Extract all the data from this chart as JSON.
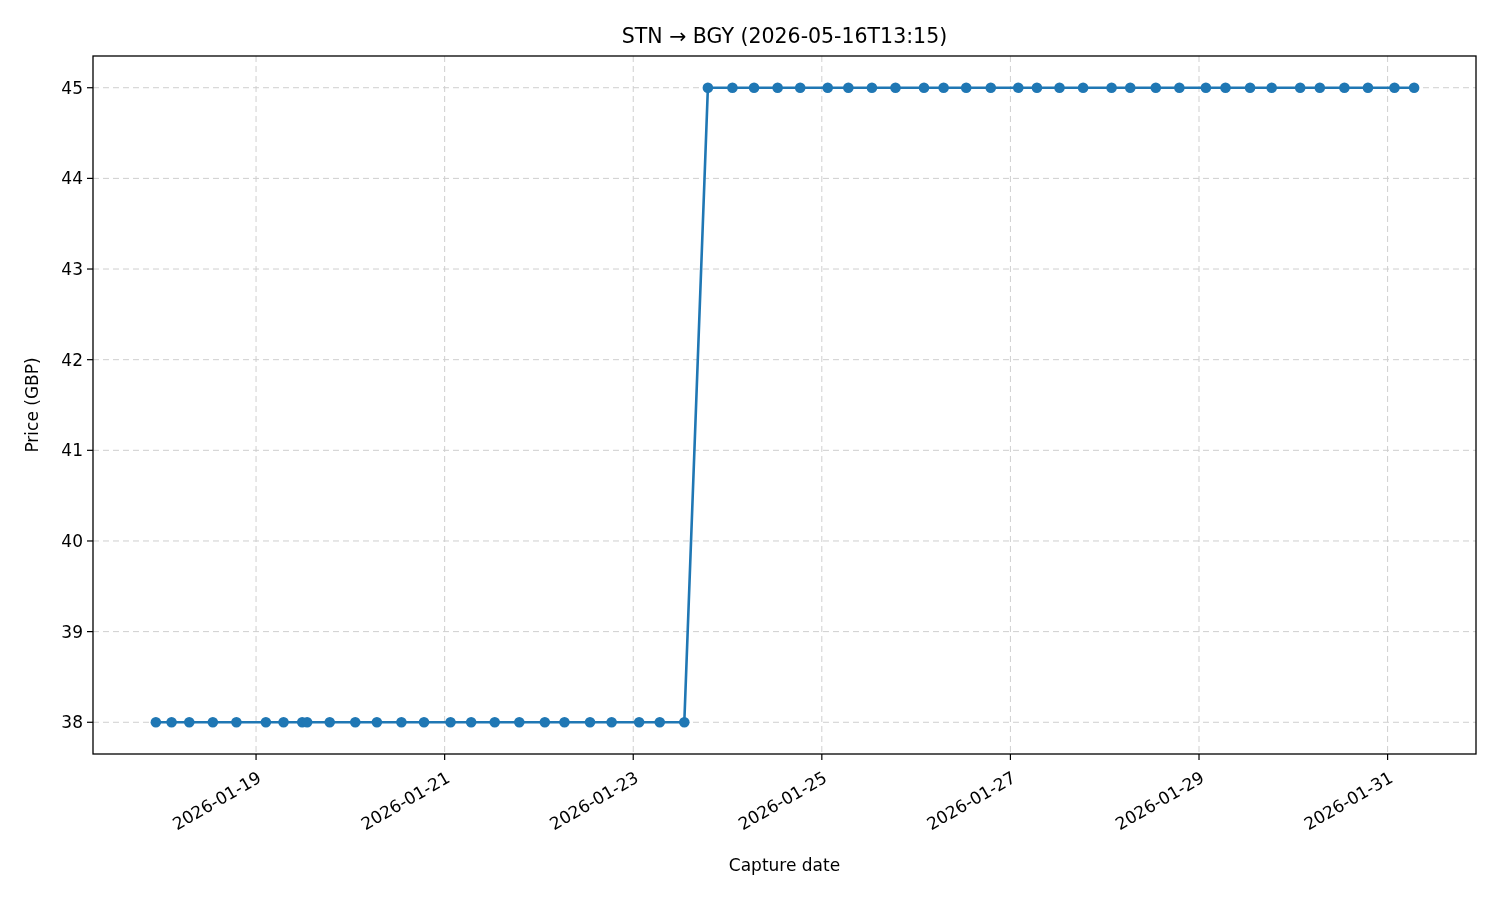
{
  "chart_data": {
    "type": "line",
    "title": "STN → BGY (2026-05-16T13:15)",
    "xlabel": "Capture date",
    "ylabel": "Price (GBP)",
    "x": [
      "2026-01-17T22:30",
      "2026-01-18T02:30",
      "2026-01-18T07:00",
      "2026-01-18T13:00",
      "2026-01-18T19:00",
      "2026-01-19T02:30",
      "2026-01-19T07:00",
      "2026-01-19T11:45",
      "2026-01-19T13:00",
      "2026-01-19T18:45",
      "2026-01-20T01:15",
      "2026-01-20T06:45",
      "2026-01-20T13:00",
      "2026-01-20T18:45",
      "2026-01-21T01:30",
      "2026-01-21T06:45",
      "2026-01-21T12:45",
      "2026-01-21T19:00",
      "2026-01-22T01:30",
      "2026-01-22T06:30",
      "2026-01-22T13:00",
      "2026-01-22T18:30",
      "2026-01-23T01:30",
      "2026-01-23T06:45",
      "2026-01-23T13:00",
      "2026-01-23T19:00",
      "2026-01-24T01:15",
      "2026-01-24T06:45",
      "2026-01-24T12:45",
      "2026-01-24T18:30",
      "2026-01-25T01:30",
      "2026-01-25T06:45",
      "2026-01-25T12:45",
      "2026-01-25T18:45",
      "2026-01-26T02:00",
      "2026-01-26T07:00",
      "2026-01-26T12:45",
      "2026-01-26T19:00",
      "2026-01-27T02:00",
      "2026-01-27T06:45",
      "2026-01-27T12:30",
      "2026-01-27T18:30",
      "2026-01-28T01:45",
      "2026-01-28T06:30",
      "2026-01-28T13:00",
      "2026-01-28T19:00",
      "2026-01-29T01:45",
      "2026-01-29T06:45",
      "2026-01-29T13:00",
      "2026-01-29T18:30",
      "2026-01-30T01:45",
      "2026-01-30T06:45",
      "2026-01-30T13:00",
      "2026-01-30T19:00",
      "2026-01-31T01:45",
      "2026-01-31T06:45"
    ],
    "series": [
      {
        "color": "#1f77b4",
        "values": [
          38,
          38,
          38,
          38,
          38,
          38,
          38,
          38,
          38,
          38,
          38,
          38,
          38,
          38,
          38,
          38,
          38,
          38,
          38,
          38,
          38,
          38,
          38,
          38,
          38,
          45,
          45,
          45,
          45,
          45,
          45,
          45,
          45,
          45,
          45,
          45,
          45,
          45,
          45,
          45,
          45,
          45,
          45,
          45,
          45,
          45,
          45,
          45,
          45,
          45,
          45,
          45,
          45,
          45,
          45,
          45
        ]
      }
    ],
    "xlim": [
      "2026-01-17T06:30",
      "2026-01-31T22:30"
    ],
    "ylim": [
      37.65,
      45.35
    ],
    "xticks": [
      "2026-01-19",
      "2026-01-21",
      "2026-01-23",
      "2026-01-25",
      "2026-01-27",
      "2026-01-29",
      "2026-01-31"
    ],
    "yticks": [
      38,
      39,
      40,
      41,
      42,
      43,
      44,
      45
    ],
    "grid": true,
    "marker": "circle",
    "line_style": "solid"
  }
}
